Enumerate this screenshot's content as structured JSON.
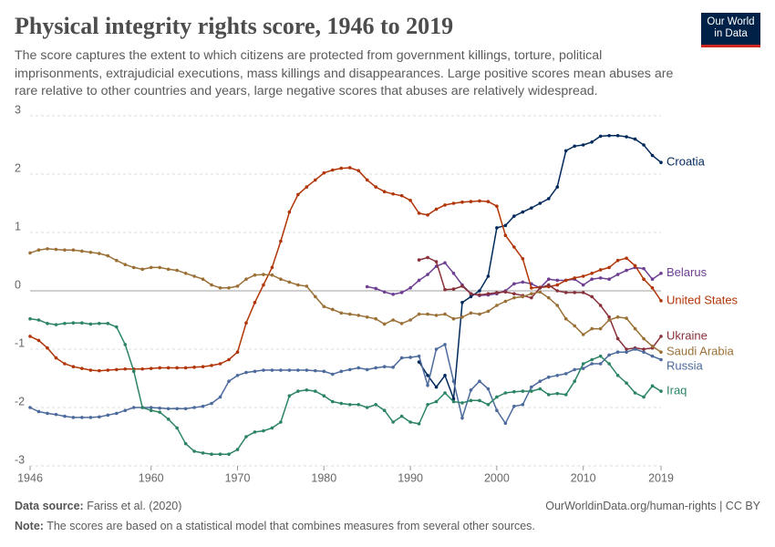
{
  "chart_data": {
    "type": "line",
    "title": "Physical integrity rights score, 1946 to 2019",
    "subtitle": "The score captures the extent to which citizens are protected from government killings, torture, political imprisonments, extrajudicial executions, mass killings and disappearances. Large positive scores mean abuses are rare relative to other countries and years, large negative scores that abuses are relatively widespread.",
    "logo": [
      "Our World",
      "in Data"
    ],
    "source_label": "Data source:",
    "source": "Fariss et al. (2020)",
    "url": "OurWorldinData.org/human-rights | CC BY",
    "note_label": "Note:",
    "note": "The scores are based on a statistical model that combines measures from several other sources.",
    "x": [
      1946,
      1947,
      1948,
      1949,
      1950,
      1951,
      1952,
      1953,
      1954,
      1955,
      1956,
      1957,
      1958,
      1959,
      1960,
      1961,
      1962,
      1963,
      1964,
      1965,
      1966,
      1967,
      1968,
      1969,
      1970,
      1971,
      1972,
      1973,
      1974,
      1975,
      1976,
      1977,
      1978,
      1979,
      1980,
      1981,
      1982,
      1983,
      1984,
      1985,
      1986,
      1987,
      1988,
      1989,
      1990,
      1991,
      1992,
      1993,
      1994,
      1995,
      1996,
      1997,
      1998,
      1999,
      2000,
      2001,
      2002,
      2003,
      2004,
      2005,
      2006,
      2007,
      2008,
      2009,
      2010,
      2011,
      2012,
      2013,
      2014,
      2015,
      2016,
      2017,
      2018,
      2019
    ],
    "xlim": [
      1946,
      2019
    ],
    "xticks": [
      1946,
      1960,
      1970,
      1980,
      1990,
      2000,
      2010,
      2019
    ],
    "ylim": [
      -3,
      3
    ],
    "yticks": [
      -3,
      -2,
      -1,
      0,
      1,
      2,
      3
    ],
    "grid": true,
    "series": [
      {
        "name": "Croatia",
        "color": "#00295b",
        "values": [
          null,
          null,
          null,
          null,
          null,
          null,
          null,
          null,
          null,
          null,
          null,
          null,
          null,
          null,
          null,
          null,
          null,
          null,
          null,
          null,
          null,
          null,
          null,
          null,
          null,
          null,
          null,
          null,
          null,
          null,
          null,
          null,
          null,
          null,
          null,
          null,
          null,
          null,
          null,
          null,
          null,
          null,
          null,
          null,
          null,
          -1.22,
          -1.45,
          -1.65,
          -1.45,
          -1.85,
          -0.2,
          -0.1,
          0.0,
          0.25,
          1.08,
          1.12,
          1.28,
          1.35,
          1.42,
          1.5,
          1.58,
          1.78,
          2.4,
          2.48,
          2.5,
          2.55,
          2.65,
          2.66,
          2.66,
          2.64,
          2.6,
          2.5,
          2.32,
          2.2
        ]
      },
      {
        "name": "Belarus",
        "color": "#6d3e91",
        "values": [
          null,
          null,
          null,
          null,
          null,
          null,
          null,
          null,
          null,
          null,
          null,
          null,
          null,
          null,
          null,
          null,
          null,
          null,
          null,
          null,
          null,
          null,
          null,
          null,
          null,
          null,
          null,
          null,
          null,
          null,
          null,
          null,
          null,
          null,
          null,
          null,
          null,
          null,
          null,
          0.07,
          0.04,
          -0.02,
          -0.06,
          -0.03,
          0.05,
          0.18,
          0.28,
          0.42,
          0.48,
          0.3,
          0.1,
          -0.05,
          -0.08,
          -0.07,
          -0.05,
          0.0,
          0.12,
          0.15,
          0.12,
          0.05,
          0.2,
          0.18,
          0.18,
          0.2,
          0.1,
          0.2,
          0.22,
          0.2,
          0.28,
          0.35,
          0.4,
          0.38,
          0.2,
          0.3
        ]
      },
      {
        "name": "United States",
        "color": "#b13507",
        "values": [
          -0.78,
          -0.85,
          -0.98,
          -1.15,
          -1.25,
          -1.3,
          -1.33,
          -1.36,
          -1.37,
          -1.36,
          -1.35,
          -1.34,
          -1.34,
          -1.34,
          -1.33,
          -1.32,
          -1.32,
          -1.32,
          -1.32,
          -1.31,
          -1.3,
          -1.28,
          -1.25,
          -1.18,
          -1.05,
          -0.55,
          -0.2,
          0.1,
          0.4,
          0.85,
          1.35,
          1.65,
          1.78,
          1.9,
          2.02,
          2.07,
          2.1,
          2.11,
          2.06,
          1.9,
          1.78,
          1.7,
          1.66,
          1.63,
          1.55,
          1.33,
          1.3,
          1.4,
          1.47,
          1.5,
          1.52,
          1.53,
          1.54,
          1.53,
          1.45,
          0.95,
          0.75,
          0.55,
          0.05,
          0.06,
          0.07,
          0.1,
          0.18,
          0.22,
          0.25,
          0.3,
          0.36,
          0.4,
          0.52,
          0.56,
          0.43,
          0.2,
          0.05,
          -0.17
        ]
      },
      {
        "name": "Ukraine",
        "color": "#883039",
        "values": [
          null,
          null,
          null,
          null,
          null,
          null,
          null,
          null,
          null,
          null,
          null,
          null,
          null,
          null,
          null,
          null,
          null,
          null,
          null,
          null,
          null,
          null,
          null,
          null,
          null,
          null,
          null,
          null,
          null,
          null,
          null,
          null,
          null,
          null,
          null,
          null,
          null,
          null,
          null,
          null,
          null,
          null,
          null,
          null,
          null,
          0.53,
          0.57,
          0.5,
          0.02,
          0.03,
          0.08,
          -0.05,
          -0.07,
          -0.05,
          -0.03,
          -0.02,
          -0.05,
          -0.08,
          -0.12,
          0.05,
          0.1,
          0.0,
          -0.03,
          -0.03,
          -0.03,
          -0.1,
          -0.25,
          -0.45,
          -0.82,
          -1.0,
          -0.98,
          -1.0,
          -0.98,
          -0.78
        ]
      },
      {
        "name": "Saudi Arabia",
        "color": "#9a7037",
        "values": [
          0.65,
          0.7,
          0.72,
          0.71,
          0.7,
          0.7,
          0.68,
          0.66,
          0.64,
          0.6,
          0.52,
          0.45,
          0.4,
          0.37,
          0.4,
          0.4,
          0.37,
          0.35,
          0.3,
          0.25,
          0.2,
          0.1,
          0.05,
          0.05,
          0.08,
          0.2,
          0.27,
          0.28,
          0.27,
          0.2,
          0.15,
          0.1,
          0.08,
          -0.1,
          -0.27,
          -0.32,
          -0.38,
          -0.4,
          -0.42,
          -0.45,
          -0.48,
          -0.57,
          -0.5,
          -0.56,
          -0.5,
          -0.4,
          -0.4,
          -0.42,
          -0.4,
          -0.48,
          -0.45,
          -0.38,
          -0.4,
          -0.35,
          -0.25,
          -0.18,
          -0.12,
          -0.1,
          -0.05,
          -0.02,
          -0.12,
          -0.25,
          -0.48,
          -0.6,
          -0.75,
          -0.65,
          -0.65,
          -0.5,
          -0.45,
          -0.47,
          -0.65,
          -0.82,
          -0.95,
          -1.05
        ]
      },
      {
        "name": "Russia",
        "color": "#4c6a9c",
        "values": [
          -2.0,
          -2.07,
          -2.1,
          -2.12,
          -2.15,
          -2.17,
          -2.17,
          -2.17,
          -2.16,
          -2.13,
          -2.1,
          -2.05,
          -2.0,
          -2.0,
          -2.0,
          -2.01,
          -2.02,
          -2.02,
          -2.02,
          -2.0,
          -1.98,
          -1.93,
          -1.82,
          -1.55,
          -1.45,
          -1.4,
          -1.38,
          -1.36,
          -1.36,
          -1.36,
          -1.36,
          -1.36,
          -1.36,
          -1.37,
          -1.38,
          -1.43,
          -1.38,
          -1.35,
          -1.32,
          -1.35,
          -1.32,
          -1.3,
          -1.31,
          -1.15,
          -1.14,
          -1.12,
          -1.62,
          -1.0,
          -0.92,
          -1.55,
          -2.18,
          -1.7,
          -1.55,
          -1.68,
          -2.05,
          -2.27,
          -1.98,
          -1.95,
          -1.65,
          -1.55,
          -1.48,
          -1.45,
          -1.42,
          -1.35,
          -1.33,
          -1.25,
          -1.25,
          -1.1,
          -1.05,
          -1.05,
          -1.0,
          -1.05,
          -1.12,
          -1.18
        ]
      },
      {
        "name": "Iraq",
        "color": "#2c8465",
        "values": [
          -0.48,
          -0.5,
          -0.56,
          -0.58,
          -0.56,
          -0.55,
          -0.55,
          -0.57,
          -0.56,
          -0.56,
          -0.62,
          -0.92,
          -1.38,
          -2.0,
          -2.05,
          -2.08,
          -2.2,
          -2.35,
          -2.62,
          -2.75,
          -2.78,
          -2.8,
          -2.8,
          -2.8,
          -2.72,
          -2.5,
          -2.42,
          -2.4,
          -2.35,
          -2.25,
          -1.8,
          -1.72,
          -1.7,
          -1.72,
          -1.8,
          -1.9,
          -1.93,
          -1.95,
          -1.95,
          -2.0,
          -1.95,
          -2.05,
          -2.25,
          -2.15,
          -2.25,
          -2.28,
          -1.95,
          -1.9,
          -1.75,
          -1.9,
          -1.92,
          -1.88,
          -1.88,
          -1.95,
          -1.82,
          -1.75,
          -1.73,
          -1.72,
          -1.72,
          -1.68,
          -1.78,
          -1.76,
          -1.78,
          -1.55,
          -1.25,
          -1.18,
          -1.12,
          -1.25,
          -1.45,
          -1.58,
          -1.75,
          -1.82,
          -1.63,
          -1.72
        ]
      }
    ]
  }
}
